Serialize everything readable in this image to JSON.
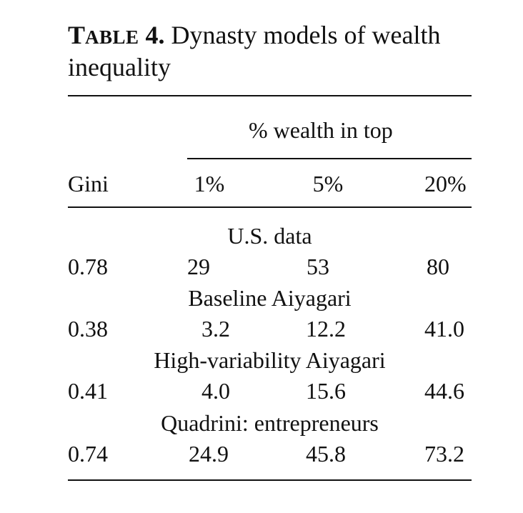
{
  "caption": {
    "label_first": "T",
    "label_rest": "ABLE",
    "label_num": " 4.",
    "text": " Dynasty models of wealth inequality"
  },
  "header": {
    "spanner": "% wealth in top",
    "columns": [
      "Gini",
      "1%",
      "5%",
      "20%"
    ]
  },
  "groups": [
    {
      "title": "U.S. data",
      "values": [
        "0.78",
        "29",
        "53",
        "80"
      ]
    },
    {
      "title": "Baseline Aiyagari",
      "values": [
        "0.38",
        "3.2",
        "12.2",
        "41.0"
      ]
    },
    {
      "title": "High-variability Aiyagari",
      "values": [
        "0.41",
        "4.0",
        "15.6",
        "44.6"
      ]
    },
    {
      "title": "Quadrini: entrepreneurs",
      "values": [
        "0.74",
        "24.9",
        "45.8",
        "73.2"
      ]
    }
  ]
}
